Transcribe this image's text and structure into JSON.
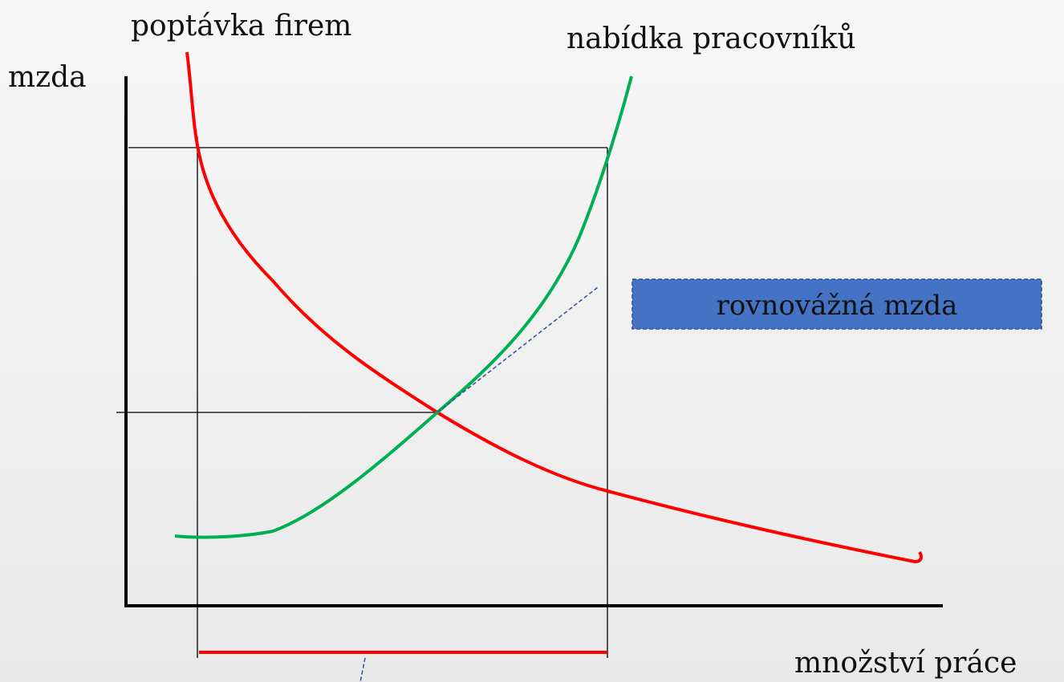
{
  "labels": {
    "demand": "poptávka firem",
    "supply": "nabídka pracovníků",
    "y_axis": "mzda",
    "x_axis": "množství práce",
    "box": "rovnovážná mzda"
  }
}
